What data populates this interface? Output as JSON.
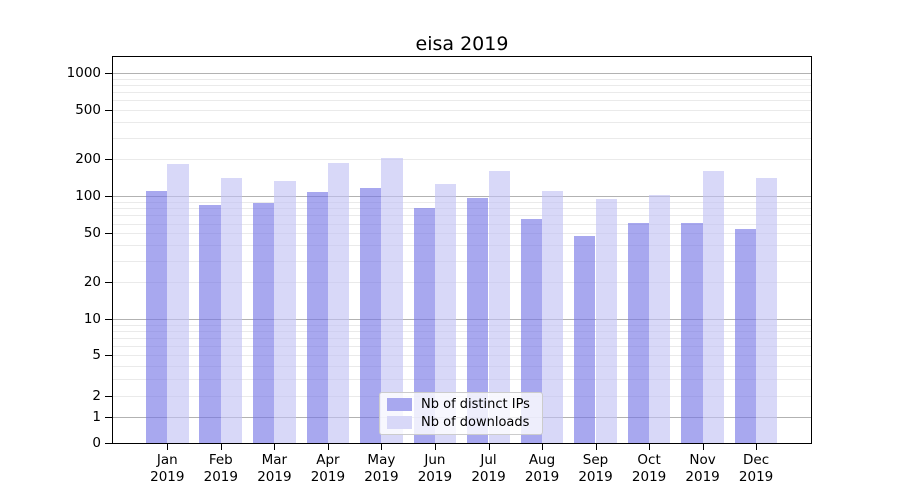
{
  "chart_data": {
    "type": "bar",
    "title": "eisa 2019",
    "categories": [
      "Jan 2019",
      "Feb 2019",
      "Mar 2019",
      "Apr 2019",
      "May 2019",
      "Jun 2019",
      "Jul 2019",
      "Aug 2019",
      "Sep 2019",
      "Oct 2019",
      "Nov 2019",
      "Dec 2019"
    ],
    "series": [
      {
        "name": "Nb of distinct IPs",
        "color": "#a8a8ef",
        "bar_rgba": "rgba(115,115,229,0.62)",
        "values": [
          110,
          85,
          88,
          109,
          116,
          80,
          97,
          66,
          48,
          61,
          61,
          54
        ]
      },
      {
        "name": "Nb of downloads",
        "color": "#d8d8f8",
        "bar_rgba": "rgba(192,192,244,0.62)",
        "values": [
          184,
          142,
          134,
          187,
          205,
          127,
          161,
          111,
          95,
          103,
          161,
          142
        ]
      }
    ],
    "yscale": "asinh-log",
    "y_ticks": [
      0,
      1,
      2,
      5,
      10,
      20,
      50,
      100,
      200,
      500,
      1000
    ],
    "ylim": [
      0,
      1350
    ],
    "grid": true,
    "grid_major_color": "#b2b2b2",
    "grid_minor_color": "#eaeaea",
    "legend_position": "lower center"
  }
}
